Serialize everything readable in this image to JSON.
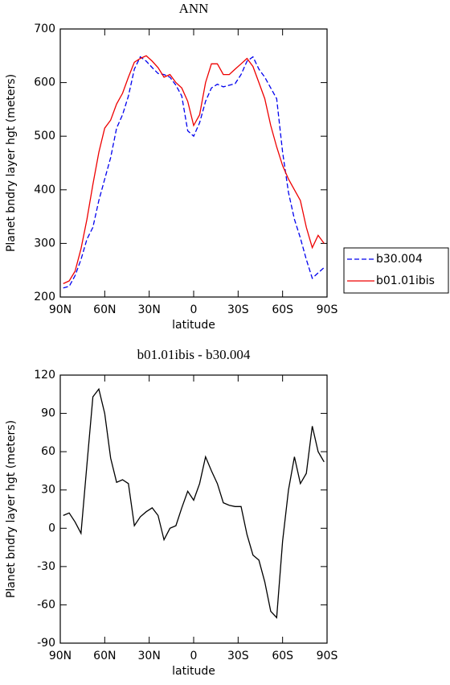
{
  "chart_data": [
    {
      "type": "line",
      "title": "ANN",
      "xlabel": "latitude",
      "ylabel": "Planet bndry layer hgt (meters)",
      "x": [
        88,
        84,
        80,
        76,
        72,
        68,
        64,
        60,
        56,
        52,
        48,
        44,
        40,
        36,
        32,
        28,
        24,
        20,
        16,
        12,
        8,
        4,
        0,
        -4,
        -8,
        -12,
        -16,
        -20,
        -24,
        -28,
        -32,
        -36,
        -40,
        -44,
        -48,
        -52,
        -56,
        -60,
        -64,
        -68,
        -72,
        -76,
        -80,
        -84,
        -88
      ],
      "series": [
        {
          "name": "b30.004",
          "color": "#0000ee",
          "style": "dashed",
          "values": [
            217,
            220,
            240,
            270,
            308,
            330,
            380,
            420,
            460,
            515,
            540,
            575,
            625,
            648,
            640,
            628,
            617,
            615,
            610,
            595,
            575,
            510,
            500,
            525,
            565,
            590,
            597,
            592,
            595,
            598,
            615,
            640,
            648,
            625,
            610,
            590,
            570,
            470,
            395,
            345,
            310,
            270,
            235,
            245,
            255
          ]
        },
        {
          "name": "b01.01ibis",
          "color": "#ee0000",
          "style": "solid",
          "values": [
            225,
            230,
            248,
            290,
            345,
            410,
            470,
            515,
            530,
            560,
            580,
            610,
            638,
            645,
            650,
            640,
            628,
            610,
            615,
            600,
            590,
            565,
            520,
            540,
            600,
            635,
            635,
            615,
            615,
            625,
            635,
            645,
            630,
            600,
            570,
            520,
            480,
            445,
            420,
            400,
            380,
            330,
            292,
            315,
            300
          ]
        }
      ],
      "xlim": [
        90,
        -90
      ],
      "xticks": [
        {
          "value": 90,
          "label": "90N"
        },
        {
          "value": 60,
          "label": "60N"
        },
        {
          "value": 30,
          "label": "30N"
        },
        0,
        {
          "value": -30,
          "label": "30S"
        },
        {
          "value": -60,
          "label": "60S"
        },
        {
          "value": -90,
          "label": "90S"
        }
      ],
      "ylim": [
        200,
        700
      ],
      "yticks": [
        200,
        300,
        400,
        500,
        600,
        700
      ],
      "legend": "right"
    },
    {
      "type": "line",
      "title": "b01.01ibis - b30.004",
      "xlabel": "latitude",
      "ylabel": "Planet bndry layer hgt (meters)",
      "x": [
        88,
        84,
        80,
        76,
        72,
        68,
        64,
        60,
        56,
        52,
        48,
        44,
        40,
        36,
        32,
        28,
        24,
        20,
        16,
        12,
        8,
        4,
        0,
        -4,
        -8,
        -12,
        -16,
        -20,
        -24,
        -28,
        -32,
        -36,
        -40,
        -44,
        -48,
        -52,
        -56,
        -60,
        -64,
        -68,
        -72,
        -76,
        -80,
        -84,
        -88
      ],
      "series": [
        {
          "color": "#000000",
          "style": "solid",
          "values": [
            10,
            12,
            5,
            -4,
            50,
            103,
            109,
            90,
            55,
            36,
            38,
            35,
            2,
            9,
            13,
            16,
            10,
            -9,
            0,
            2,
            16,
            29,
            22,
            35,
            56,
            45,
            35,
            20,
            18,
            17,
            17,
            -5,
            -21,
            -25,
            -42,
            -65,
            -70,
            -10,
            30,
            56,
            35,
            43,
            80,
            60,
            52
          ]
        }
      ],
      "xlim": [
        90,
        -90
      ],
      "xticks": [
        {
          "value": 90,
          "label": "90N"
        },
        {
          "value": 60,
          "label": "60N"
        },
        {
          "value": 30,
          "label": "30N"
        },
        0,
        {
          "value": -30,
          "label": "30S"
        },
        {
          "value": -60,
          "label": "60S"
        },
        {
          "value": -90,
          "label": "90S"
        }
      ],
      "ylim": [
        -90,
        120
      ],
      "yticks": [
        -90,
        -60,
        -30,
        0,
        30,
        60,
        90,
        120
      ]
    }
  ]
}
